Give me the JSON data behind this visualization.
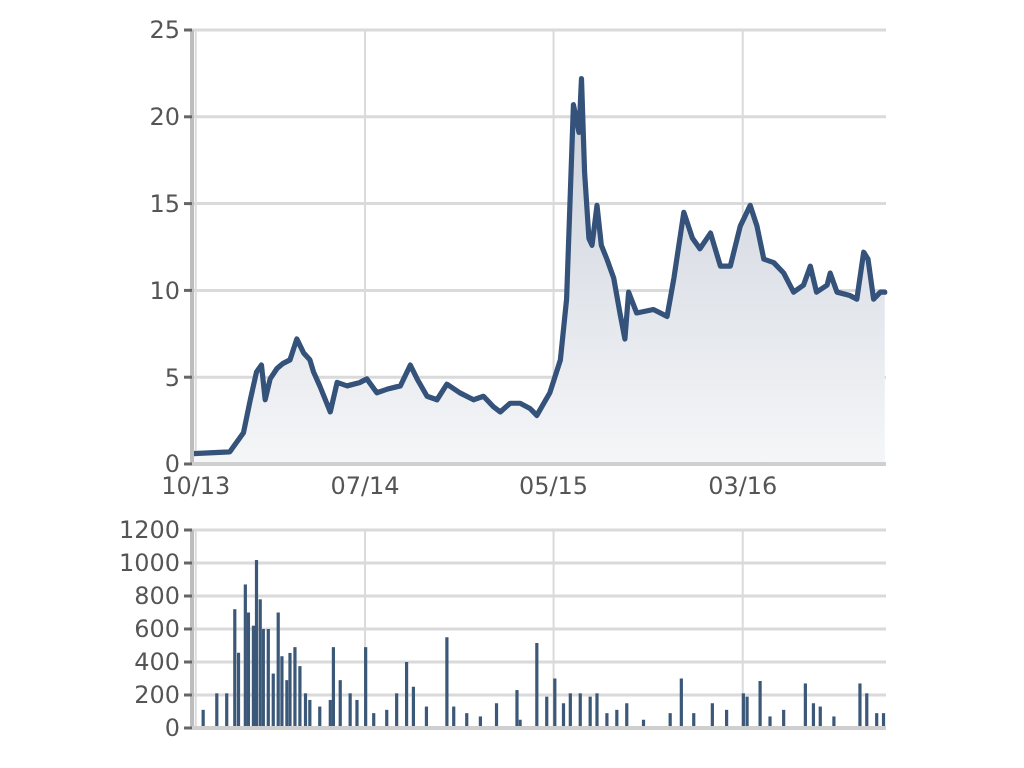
{
  "chart_data": [
    {
      "type": "area",
      "color": "#34527a",
      "grid": true,
      "xlim": [
        "2013-09-25",
        "2016-10-18"
      ],
      "xticks": [
        {
          "value": "2013-10-01",
          "label": "10/13"
        },
        {
          "value": "2014-07-01",
          "label": "07/14"
        },
        {
          "value": "2015-05-01",
          "label": "05/15"
        },
        {
          "value": "2016-03-01",
          "label": "03/16"
        }
      ],
      "ylim": [
        0,
        25
      ],
      "yticks": [
        0,
        5,
        10,
        15,
        20,
        25
      ],
      "x": [
        "2013-09-27",
        "2013-11-25",
        "2013-12-17",
        "2013-12-28",
        "2014-01-07",
        "2014-01-15",
        "2014-01-21",
        "2014-01-29",
        "2014-02-09",
        "2014-02-19",
        "2014-03-02",
        "2014-03-13",
        "2014-03-24",
        "2014-04-03",
        "2014-04-09",
        "2014-04-19",
        "2014-05-06",
        "2014-05-17",
        "2014-06-02",
        "2014-06-23",
        "2014-07-04",
        "2014-07-20",
        "2014-08-05",
        "2014-08-27",
        "2014-09-12",
        "2014-09-23",
        "2014-10-09",
        "2014-10-25",
        "2014-11-10",
        "2014-12-01",
        "2014-12-23",
        "2015-01-08",
        "2015-01-24",
        "2015-02-04",
        "2015-02-20",
        "2015-03-08",
        "2015-03-24",
        "2015-04-04",
        "2015-04-25",
        "2015-05-12",
        "2015-05-22",
        "2015-06-02",
        "2015-06-11",
        "2015-06-15",
        "2015-06-20",
        "2015-06-27",
        "2015-07-02",
        "2015-07-10",
        "2015-07-17",
        "2015-07-26",
        "2015-08-06",
        "2015-08-16",
        "2015-08-24",
        "2015-08-30",
        "2015-09-12",
        "2015-10-09",
        "2015-10-31",
        "2015-11-11",
        "2015-11-27",
        "2015-12-11",
        "2015-12-23",
        "2016-01-09",
        "2016-01-25",
        "2016-02-10",
        "2016-02-26",
        "2016-03-13",
        "2016-03-24",
        "2016-04-04",
        "2016-04-20",
        "2016-05-06",
        "2016-05-22",
        "2016-06-07",
        "2016-06-18",
        "2016-06-28",
        "2016-07-15",
        "2016-07-20",
        "2016-07-31",
        "2016-08-21",
        "2016-09-01",
        "2016-09-12",
        "2016-09-19",
        "2016-09-28",
        "2016-10-09",
        "2016-10-16"
      ],
      "values": [
        0.6,
        0.7,
        1.8,
        3.7,
        5.3,
        5.7,
        3.7,
        4.9,
        5.5,
        5.8,
        6.0,
        7.2,
        6.4,
        6.0,
        5.3,
        4.5,
        3.0,
        4.7,
        4.5,
        4.7,
        4.9,
        4.1,
        4.3,
        4.5,
        5.7,
        4.9,
        3.9,
        3.7,
        4.6,
        4.1,
        3.7,
        3.9,
        3.3,
        3.0,
        3.5,
        3.5,
        3.2,
        2.8,
        4.1,
        6.0,
        9.5,
        20.7,
        19.1,
        22.2,
        16.8,
        13.0,
        12.6,
        14.9,
        12.6,
        11.8,
        10.7,
        8.7,
        7.2,
        9.9,
        8.7,
        8.9,
        8.5,
        10.7,
        14.5,
        13.0,
        12.4,
        13.3,
        11.4,
        11.4,
        13.7,
        14.9,
        13.7,
        11.8,
        11.6,
        11.0,
        9.9,
        10.3,
        11.4,
        9.9,
        10.3,
        11.0,
        9.9,
        9.7,
        9.5,
        12.2,
        11.8,
        9.5,
        9.9,
        9.9
      ]
    },
    {
      "type": "bar",
      "color": "#3b5878",
      "grid": true,
      "tick_labels": "y",
      "xlim": [
        "2013-09-25",
        "2016-10-18"
      ],
      "xticks": [
        {
          "value": "2013-10-01",
          "label": null
        },
        {
          "value": "2014-07-01",
          "label": null
        },
        {
          "value": "2015-05-01",
          "label": null
        },
        {
          "value": "2016-03-01",
          "label": null
        }
      ],
      "ylim": [
        0,
        1200
      ],
      "yticks": [
        0,
        200,
        400,
        600,
        800,
        1000,
        1200
      ],
      "x": [
        "2013-10-13",
        "2013-11-04",
        "2013-11-20",
        "2013-12-03",
        "2013-12-09",
        "2013-12-20",
        "2013-12-25",
        "2014-01-02",
        "2014-01-07",
        "2014-01-13",
        "2014-01-18",
        "2014-01-26",
        "2014-02-03",
        "2014-02-11",
        "2014-02-17",
        "2014-02-25",
        "2014-03-02",
        "2014-03-10",
        "2014-03-18",
        "2014-03-27",
        "2014-04-03",
        "2014-04-19",
        "2014-05-06",
        "2014-05-11",
        "2014-05-22",
        "2014-06-07",
        "2014-06-18",
        "2014-07-02",
        "2014-07-15",
        "2014-08-05",
        "2014-08-21",
        "2014-09-06",
        "2014-09-17",
        "2014-10-08",
        "2014-11-10",
        "2014-11-21",
        "2014-12-12",
        "2015-01-03",
        "2015-01-29",
        "2015-03-03",
        "2015-03-08",
        "2015-04-04",
        "2015-04-20",
        "2015-05-03",
        "2015-05-17",
        "2015-05-28",
        "2015-06-13",
        "2015-06-29",
        "2015-07-10",
        "2015-07-26",
        "2015-08-11",
        "2015-08-27",
        "2015-09-23",
        "2015-11-05",
        "2015-11-23",
        "2015-12-13",
        "2016-01-12",
        "2016-02-04",
        "2016-03-02",
        "2016-03-08",
        "2016-03-29",
        "2016-04-14",
        "2016-05-06",
        "2016-06-10",
        "2016-06-23",
        "2016-07-04",
        "2016-07-26",
        "2016-09-06",
        "2016-09-17",
        "2016-10-03",
        "2016-10-14"
      ],
      "values": [
        110,
        210,
        210,
        720,
        456,
        870,
        700,
        620,
        1018,
        780,
        600,
        600,
        330,
        700,
        435,
        290,
        455,
        490,
        375,
        210,
        170,
        130,
        170,
        490,
        290,
        210,
        170,
        490,
        90,
        110,
        210,
        400,
        250,
        130,
        550,
        130,
        90,
        70,
        150,
        230,
        50,
        515,
        190,
        300,
        150,
        210,
        210,
        190,
        210,
        90,
        110,
        150,
        50,
        90,
        300,
        90,
        150,
        110,
        210,
        190,
        285,
        70,
        110,
        270,
        150,
        130,
        70,
        270,
        210,
        90,
        90
      ]
    }
  ]
}
